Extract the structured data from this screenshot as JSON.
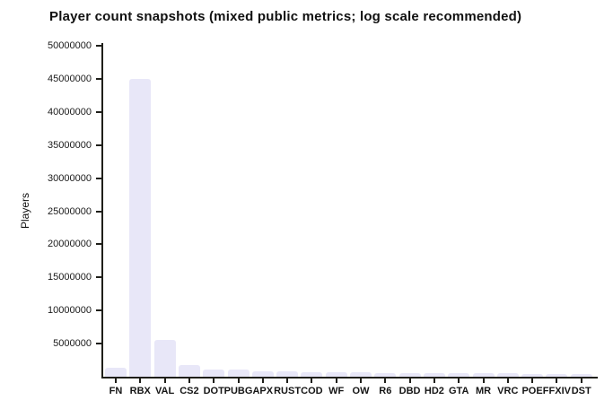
{
  "title": "Player count snapshots (mixed public metrics; log scale recommended)",
  "chart_data": {
    "type": "bar",
    "title": "Player count snapshots (mixed public metrics; log scale recommended)",
    "xlabel": "",
    "ylabel": "Players",
    "categories": [
      "FN",
      "RBX",
      "VAL",
      "CS2",
      "DOT",
      "PUBG",
      "APX",
      "RUST",
      "COD",
      "WF",
      "OW",
      "R6",
      "DBD",
      "HD2",
      "GTA",
      "MR",
      "VRC",
      "POE",
      "FFXIV",
      "DST"
    ],
    "values": [
      1300000,
      45000000,
      5500000,
      1700000,
      1100000,
      1050000,
      850000,
      780000,
      720000,
      660000,
      620000,
      600000,
      580000,
      550000,
      530000,
      510000,
      490000,
      470000,
      440000,
      400000
    ],
    "yticks": [
      5000000,
      10000000,
      15000000,
      20000000,
      25000000,
      30000000,
      35000000,
      40000000,
      45000000,
      50000000
    ],
    "ylim": [
      0,
      50000000
    ],
    "grid": false,
    "legend_position": "none",
    "bar_color": "#e8e7f8",
    "axis_color": "#1f1f1a",
    "text_color": "#111111",
    "background_color": "#ffffff"
  }
}
